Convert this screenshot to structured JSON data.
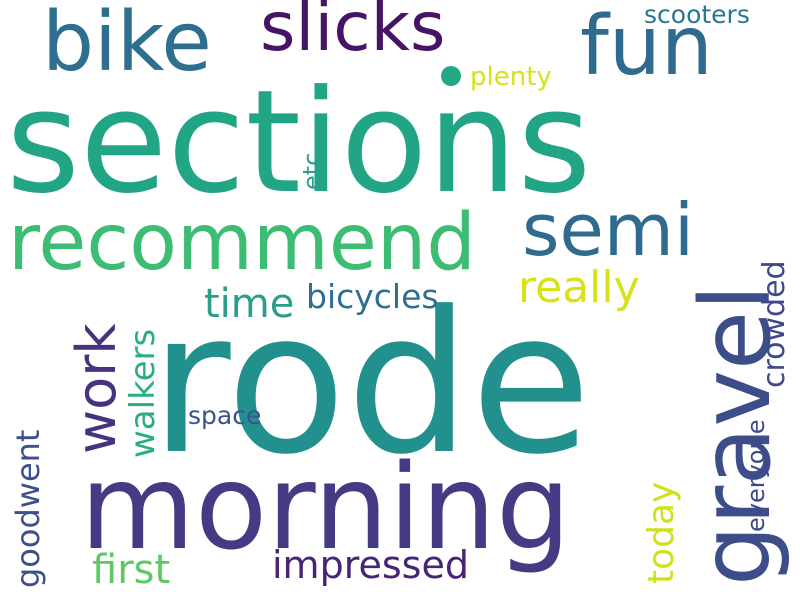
{
  "words": [
    {
      "text": "sections",
      "color": "#21a585"
    },
    {
      "text": "rode",
      "color": "#22908c"
    },
    {
      "text": "morning",
      "color": "#453a84"
    },
    {
      "text": "recommend",
      "color": "#3dbc74"
    },
    {
      "text": "bike",
      "color": "#2e6e8e"
    },
    {
      "text": "fun",
      "color": "#2f6b8e"
    },
    {
      "text": "slicks",
      "color": "#471365"
    },
    {
      "text": "semi",
      "color": "#2f6b8e"
    },
    {
      "text": "gravel",
      "color": "#3d4d8a"
    },
    {
      "text": "work",
      "color": "#46327e"
    },
    {
      "text": "really",
      "color": "#d8e219"
    },
    {
      "text": "crowded",
      "color": "#3f4889"
    },
    {
      "text": "walkers",
      "color": "#28ae80"
    },
    {
      "text": "time",
      "color": "#2a9d8b"
    },
    {
      "text": "bicycles",
      "color": "#2e6e8e"
    },
    {
      "text": "goodwent",
      "color": "#3c508b"
    },
    {
      "text": "today",
      "color": "#d0e11c"
    },
    {
      "text": "everyone",
      "color": "#3f4889"
    },
    {
      "text": "first",
      "color": "#5ec962"
    },
    {
      "text": "impressed",
      "color": "#482475"
    },
    {
      "text": "space",
      "color": "#3a538b"
    },
    {
      "text": "scooters",
      "color": "#2a768e"
    },
    {
      "text": "plenty",
      "color": "#d8e219"
    },
    {
      "text": "etc",
      "color": "#2a9d8b"
    }
  ],
  "dot_color": "#22a884"
}
